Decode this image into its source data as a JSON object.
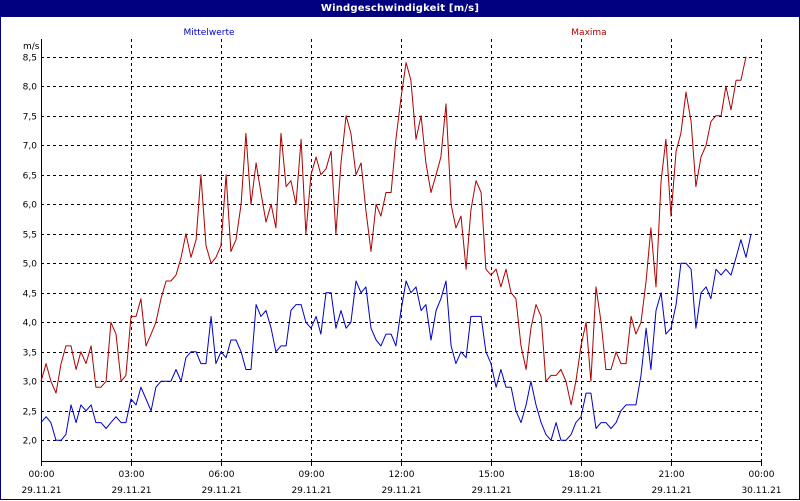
{
  "window": {
    "title": "Windgeschwindigkeit [m/s]"
  },
  "colors": {
    "title_bg": "#000080",
    "mittel": "#0000cc",
    "maxima": "#b00000"
  },
  "chart_data": {
    "type": "line",
    "title": "Windgeschwindigkeit [m/s]",
    "ylabel": "m/s",
    "ylim": [
      1.65,
      8.8
    ],
    "grid": true,
    "x_ticks": [
      {
        "time": "00:00",
        "date": "29.11.21"
      },
      {
        "time": "03:00",
        "date": "29.11.21"
      },
      {
        "time": "06:00",
        "date": "29.11.21"
      },
      {
        "time": "09:00",
        "date": "29.11.21"
      },
      {
        "time": "12:00",
        "date": "29.11.21"
      },
      {
        "time": "15:00",
        "date": "29.11.21"
      },
      {
        "time": "18:00",
        "date": "29.11.21"
      },
      {
        "time": "21:00",
        "date": "29.11.21"
      },
      {
        "time": "00:00",
        "date": "30.11.21"
      }
    ],
    "y_ticks": [
      "2,0",
      "2,5",
      "3,0",
      "3,5",
      "4,0",
      "4,5",
      "5,0",
      "5,5",
      "6,0",
      "6,5",
      "7,0",
      "7,5",
      "8,0",
      "8,5"
    ],
    "y_tick_values": [
      2.0,
      2.5,
      3.0,
      3.5,
      4.0,
      4.5,
      5.0,
      5.5,
      6.0,
      6.5,
      7.0,
      7.5,
      8.0,
      8.5
    ],
    "x_range_hours": [
      0,
      24
    ],
    "series": [
      {
        "name": "Mittelwerte",
        "points": [
          [
            0.0,
            2.3
          ],
          [
            0.17,
            2.4
          ],
          [
            0.33,
            2.3
          ],
          [
            0.5,
            2.0
          ],
          [
            0.67,
            2.0
          ],
          [
            0.83,
            2.1
          ],
          [
            1.0,
            2.6
          ],
          [
            1.17,
            2.3
          ],
          [
            1.33,
            2.6
          ],
          [
            1.5,
            2.5
          ],
          [
            1.67,
            2.6
          ],
          [
            1.83,
            2.3
          ],
          [
            2.0,
            2.3
          ],
          [
            2.17,
            2.2
          ],
          [
            2.33,
            2.3
          ],
          [
            2.5,
            2.4
          ],
          [
            2.67,
            2.3
          ],
          [
            2.83,
            2.3
          ],
          [
            3.0,
            2.7
          ],
          [
            3.17,
            2.6
          ],
          [
            3.33,
            2.9
          ],
          [
            3.5,
            2.7
          ],
          [
            3.67,
            2.5
          ],
          [
            3.83,
            2.9
          ],
          [
            4.0,
            3.0
          ],
          [
            4.17,
            3.0
          ],
          [
            4.33,
            3.0
          ],
          [
            4.5,
            3.2
          ],
          [
            4.67,
            3.0
          ],
          [
            4.83,
            3.4
          ],
          [
            5.0,
            3.5
          ],
          [
            5.17,
            3.5
          ],
          [
            5.33,
            3.3
          ],
          [
            5.5,
            3.3
          ],
          [
            5.67,
            4.1
          ],
          [
            5.83,
            3.3
          ],
          [
            6.0,
            3.5
          ],
          [
            6.17,
            3.4
          ],
          [
            6.33,
            3.7
          ],
          [
            6.5,
            3.7
          ],
          [
            6.67,
            3.5
          ],
          [
            6.83,
            3.2
          ],
          [
            7.0,
            3.2
          ],
          [
            7.17,
            4.3
          ],
          [
            7.33,
            4.1
          ],
          [
            7.5,
            4.2
          ],
          [
            7.67,
            3.9
          ],
          [
            7.83,
            3.5
          ],
          [
            8.0,
            3.6
          ],
          [
            8.17,
            3.6
          ],
          [
            8.33,
            4.2
          ],
          [
            8.5,
            4.3
          ],
          [
            8.67,
            4.3
          ],
          [
            8.83,
            4.0
          ],
          [
            9.0,
            3.9
          ],
          [
            9.17,
            4.1
          ],
          [
            9.33,
            3.8
          ],
          [
            9.5,
            4.5
          ],
          [
            9.67,
            4.5
          ],
          [
            9.83,
            3.9
          ],
          [
            10.0,
            4.2
          ],
          [
            10.17,
            3.9
          ],
          [
            10.33,
            4.0
          ],
          [
            10.5,
            4.7
          ],
          [
            10.67,
            4.5
          ],
          [
            10.83,
            4.6
          ],
          [
            11.0,
            3.9
          ],
          [
            11.17,
            3.7
          ],
          [
            11.33,
            3.6
          ],
          [
            11.5,
            3.8
          ],
          [
            11.67,
            3.8
          ],
          [
            11.83,
            3.6
          ],
          [
            12.0,
            4.2
          ],
          [
            12.17,
            4.7
          ],
          [
            12.33,
            4.5
          ],
          [
            12.5,
            4.6
          ],
          [
            12.67,
            4.2
          ],
          [
            12.83,
            4.3
          ],
          [
            13.0,
            3.7
          ],
          [
            13.17,
            4.2
          ],
          [
            13.33,
            4.4
          ],
          [
            13.5,
            4.7
          ],
          [
            13.67,
            3.6
          ],
          [
            13.83,
            3.3
          ],
          [
            14.0,
            3.5
          ],
          [
            14.17,
            3.4
          ],
          [
            14.33,
            4.1
          ],
          [
            14.5,
            4.1
          ],
          [
            14.67,
            4.1
          ],
          [
            14.83,
            3.5
          ],
          [
            15.0,
            3.3
          ],
          [
            15.17,
            2.9
          ],
          [
            15.33,
            3.2
          ],
          [
            15.5,
            2.9
          ],
          [
            15.67,
            2.9
          ],
          [
            15.83,
            2.5
          ],
          [
            16.0,
            2.3
          ],
          [
            16.17,
            2.6
          ],
          [
            16.33,
            3.0
          ],
          [
            16.5,
            2.6
          ],
          [
            16.67,
            2.3
          ],
          [
            16.83,
            2.1
          ],
          [
            17.0,
            2.0
          ],
          [
            17.17,
            2.3
          ],
          [
            17.33,
            2.0
          ],
          [
            17.5,
            2.0
          ],
          [
            17.67,
            2.1
          ],
          [
            17.83,
            2.3
          ],
          [
            18.0,
            2.4
          ],
          [
            18.17,
            2.8
          ],
          [
            18.33,
            2.8
          ],
          [
            18.5,
            2.2
          ],
          [
            18.67,
            2.3
          ],
          [
            18.83,
            2.3
          ],
          [
            19.0,
            2.2
          ],
          [
            19.17,
            2.3
          ],
          [
            19.33,
            2.5
          ],
          [
            19.5,
            2.6
          ],
          [
            19.67,
            2.6
          ],
          [
            19.83,
            2.6
          ],
          [
            20.0,
            3.1
          ],
          [
            20.17,
            3.9
          ],
          [
            20.33,
            3.2
          ],
          [
            20.5,
            4.2
          ],
          [
            20.67,
            4.5
          ],
          [
            20.83,
            3.8
          ],
          [
            21.0,
            3.9
          ],
          [
            21.17,
            4.3
          ],
          [
            21.33,
            5.0
          ],
          [
            21.5,
            5.0
          ],
          [
            21.67,
            4.9
          ],
          [
            21.83,
            3.9
          ],
          [
            22.0,
            4.5
          ],
          [
            22.17,
            4.6
          ],
          [
            22.33,
            4.4
          ],
          [
            22.5,
            4.9
          ],
          [
            22.67,
            4.8
          ],
          [
            22.83,
            4.9
          ],
          [
            23.0,
            4.8
          ],
          [
            23.17,
            5.1
          ],
          [
            23.33,
            5.4
          ],
          [
            23.5,
            5.1
          ],
          [
            23.67,
            5.5
          ]
        ]
      },
      {
        "name": "Maxima",
        "points": [
          [
            0.0,
            3.0
          ],
          [
            0.17,
            3.3
          ],
          [
            0.33,
            3.0
          ],
          [
            0.5,
            2.8
          ],
          [
            0.67,
            3.3
          ],
          [
            0.83,
            3.6
          ],
          [
            1.0,
            3.6
          ],
          [
            1.17,
            3.2
          ],
          [
            1.33,
            3.5
          ],
          [
            1.5,
            3.3
          ],
          [
            1.67,
            3.6
          ],
          [
            1.83,
            2.9
          ],
          [
            2.0,
            2.9
          ],
          [
            2.17,
            3.0
          ],
          [
            2.33,
            4.0
          ],
          [
            2.5,
            3.8
          ],
          [
            2.67,
            3.0
          ],
          [
            2.83,
            3.1
          ],
          [
            3.0,
            4.1
          ],
          [
            3.17,
            4.1
          ],
          [
            3.33,
            4.4
          ],
          [
            3.5,
            3.6
          ],
          [
            3.67,
            3.8
          ],
          [
            3.83,
            4.0
          ],
          [
            4.0,
            4.4
          ],
          [
            4.17,
            4.7
          ],
          [
            4.33,
            4.7
          ],
          [
            4.5,
            4.8
          ],
          [
            4.67,
            5.1
          ],
          [
            4.83,
            5.5
          ],
          [
            5.0,
            5.1
          ],
          [
            5.17,
            5.4
          ],
          [
            5.33,
            6.5
          ],
          [
            5.5,
            5.3
          ],
          [
            5.67,
            5.0
          ],
          [
            5.83,
            5.1
          ],
          [
            6.0,
            5.3
          ],
          [
            6.17,
            6.5
          ],
          [
            6.33,
            5.2
          ],
          [
            6.5,
            5.4
          ],
          [
            6.67,
            6.0
          ],
          [
            6.83,
            7.2
          ],
          [
            7.0,
            6.0
          ],
          [
            7.17,
            6.7
          ],
          [
            7.33,
            6.2
          ],
          [
            7.5,
            5.7
          ],
          [
            7.67,
            6.0
          ],
          [
            7.83,
            5.6
          ],
          [
            8.0,
            7.2
          ],
          [
            8.17,
            6.3
          ],
          [
            8.33,
            6.4
          ],
          [
            8.5,
            6.0
          ],
          [
            8.67,
            7.1
          ],
          [
            8.83,
            5.5
          ],
          [
            9.0,
            6.5
          ],
          [
            9.17,
            6.8
          ],
          [
            9.33,
            6.5
          ],
          [
            9.5,
            6.6
          ],
          [
            9.67,
            6.9
          ],
          [
            9.83,
            5.5
          ],
          [
            10.0,
            6.7
          ],
          [
            10.17,
            7.5
          ],
          [
            10.33,
            7.2
          ],
          [
            10.5,
            6.5
          ],
          [
            10.67,
            6.7
          ],
          [
            10.83,
            5.9
          ],
          [
            11.0,
            5.2
          ],
          [
            11.17,
            6.0
          ],
          [
            11.33,
            5.8
          ],
          [
            11.5,
            6.2
          ],
          [
            11.67,
            6.2
          ],
          [
            11.83,
            7.1
          ],
          [
            12.0,
            7.8
          ],
          [
            12.17,
            8.4
          ],
          [
            12.33,
            8.1
          ],
          [
            12.5,
            7.1
          ],
          [
            12.67,
            7.5
          ],
          [
            12.83,
            6.7
          ],
          [
            13.0,
            6.2
          ],
          [
            13.17,
            6.5
          ],
          [
            13.33,
            6.8
          ],
          [
            13.5,
            7.7
          ],
          [
            13.67,
            6.0
          ],
          [
            13.83,
            5.6
          ],
          [
            14.0,
            5.8
          ],
          [
            14.17,
            4.9
          ],
          [
            14.33,
            5.9
          ],
          [
            14.5,
            6.4
          ],
          [
            14.67,
            6.2
          ],
          [
            14.83,
            4.9
          ],
          [
            15.0,
            4.8
          ],
          [
            15.17,
            4.9
          ],
          [
            15.33,
            4.6
          ],
          [
            15.5,
            4.9
          ],
          [
            15.67,
            4.5
          ],
          [
            15.83,
            4.4
          ],
          [
            16.0,
            3.6
          ],
          [
            16.17,
            3.2
          ],
          [
            16.33,
            3.9
          ],
          [
            16.5,
            4.3
          ],
          [
            16.67,
            4.1
          ],
          [
            16.83,
            3.0
          ],
          [
            17.0,
            3.1
          ],
          [
            17.17,
            3.1
          ],
          [
            17.33,
            3.2
          ],
          [
            17.5,
            3.0
          ],
          [
            17.67,
            2.6
          ],
          [
            17.83,
            3.0
          ],
          [
            18.0,
            3.6
          ],
          [
            18.17,
            4.0
          ],
          [
            18.33,
            3.0
          ],
          [
            18.5,
            4.6
          ],
          [
            18.67,
            4.0
          ],
          [
            18.83,
            3.2
          ],
          [
            19.0,
            3.2
          ],
          [
            19.17,
            3.5
          ],
          [
            19.33,
            3.3
          ],
          [
            19.5,
            3.3
          ],
          [
            19.67,
            4.1
          ],
          [
            19.83,
            3.8
          ],
          [
            20.0,
            4.0
          ],
          [
            20.17,
            4.7
          ],
          [
            20.33,
            5.6
          ],
          [
            20.5,
            4.6
          ],
          [
            20.67,
            6.4
          ],
          [
            20.83,
            7.1
          ],
          [
            21.0,
            5.8
          ],
          [
            21.17,
            6.9
          ],
          [
            21.33,
            7.2
          ],
          [
            21.5,
            7.9
          ],
          [
            21.67,
            7.4
          ],
          [
            21.83,
            6.3
          ],
          [
            22.0,
            6.8
          ],
          [
            22.17,
            7.0
          ],
          [
            22.33,
            7.4
          ],
          [
            22.5,
            7.5
          ],
          [
            22.67,
            7.5
          ],
          [
            22.83,
            8.0
          ],
          [
            23.0,
            7.6
          ],
          [
            23.17,
            8.1
          ],
          [
            23.33,
            8.1
          ],
          [
            23.5,
            8.5
          ]
        ]
      }
    ],
    "legend": {
      "mittel_label": "Mittelwerte",
      "maxima_label": "Maxima"
    }
  }
}
